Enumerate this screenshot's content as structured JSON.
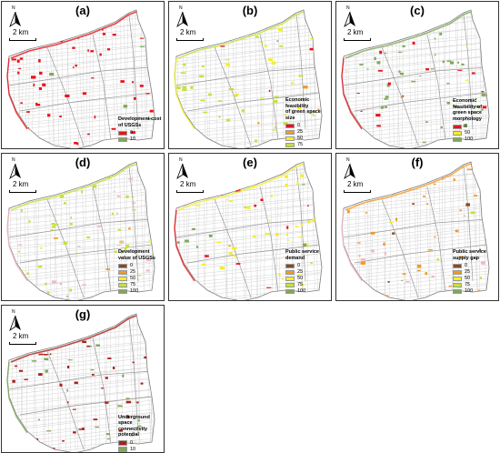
{
  "scale_label": "2 km",
  "north_label": "N",
  "panels": [
    {
      "id": "a",
      "label": "(a)",
      "legend_title": [
        "Development cost",
        "of USGSs"
      ],
      "legend": [
        {
          "color": "#e8131a",
          "value": "0"
        },
        {
          "color": "#7fa85a",
          "value": "10"
        }
      ],
      "accent": "#e8131a",
      "accent2": "#e8131a"
    },
    {
      "id": "b",
      "label": "(b)",
      "legend_title": [
        "Economic feasibility",
        "of green space size"
      ],
      "legend": [
        {
          "color": "#e8131a",
          "value": "0"
        },
        {
          "color": "#f29a26",
          "value": "25"
        },
        {
          "color": "#f3ef2c",
          "value": "50"
        },
        {
          "color": "#c6e03a",
          "value": "75"
        },
        {
          "color": "#7fa85a",
          "value": "100"
        }
      ],
      "accent": "#c6e03a",
      "accent2": "#f3ef2c"
    },
    {
      "id": "c",
      "label": "(c)",
      "legend_title": [
        "Economic",
        "feasibility of",
        "green space",
        "morphology"
      ],
      "legend": [
        {
          "color": "#e8131a",
          "value": "0"
        },
        {
          "color": "#f3ef2c",
          "value": "50"
        },
        {
          "color": "#7fa85a",
          "value": "100"
        }
      ],
      "accent": "#7fa85a",
      "accent2": "#e8131a"
    },
    {
      "id": "d",
      "label": "(d)",
      "legend_title": [
        "Development",
        "value of USGSs"
      ],
      "legend": [
        {
          "color": "#8b4a1c",
          "value": "0"
        },
        {
          "color": "#f29a26",
          "value": "25"
        },
        {
          "color": "#f3ef2c",
          "value": "50"
        },
        {
          "color": "#c6e03a",
          "value": "75"
        },
        {
          "color": "#7fa85a",
          "value": "100"
        }
      ],
      "accent": "#c6e03a",
      "accent2": "#f2b8c6"
    },
    {
      "id": "e",
      "label": "(e)",
      "legend_title": [
        "Public service",
        "demand"
      ],
      "legend": [
        {
          "color": "#8b4a1c",
          "value": "0"
        },
        {
          "color": "#f29a26",
          "value": "25"
        },
        {
          "color": "#f3ef2c",
          "value": "50"
        },
        {
          "color": "#c6e03a",
          "value": "75"
        },
        {
          "color": "#7fa85a",
          "value": "100"
        }
      ],
      "accent": "#f3ef2c",
      "accent2": "#e8131a"
    },
    {
      "id": "f",
      "label": "(f)",
      "legend_title": [
        "Public service",
        "supply gap"
      ],
      "legend": [
        {
          "color": "#8b4a1c",
          "value": "0"
        },
        {
          "color": "#f29a26",
          "value": "25"
        },
        {
          "color": "#f3ef2c",
          "value": "50"
        },
        {
          "color": "#c6e03a",
          "value": "75"
        },
        {
          "color": "#7fa85a",
          "value": "100"
        }
      ],
      "accent": "#f29a26",
      "accent2": "#f2b8c6"
    },
    {
      "id": "g",
      "label": "(g)",
      "legend_title": [
        "Underground space",
        "connectivity",
        "potential"
      ],
      "legend": [
        {
          "color": "#a8221c",
          "value": "0"
        },
        {
          "color": "#7fa85a",
          "value": "10"
        }
      ],
      "accent": "#a8221c",
      "accent2": "#7fa85a"
    }
  ]
}
